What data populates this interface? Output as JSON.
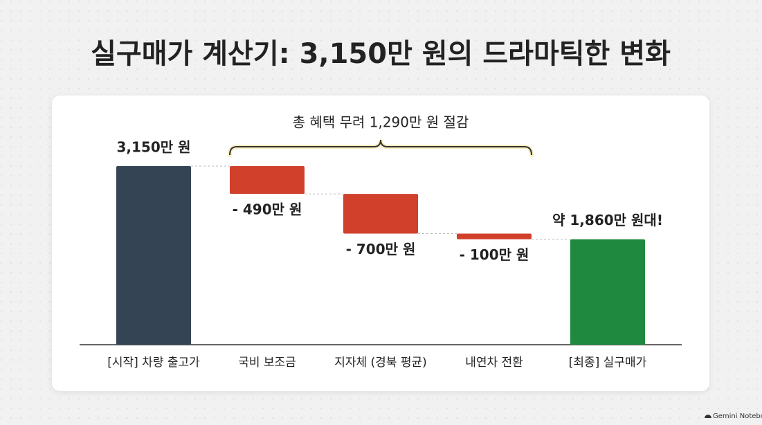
{
  "chart_data": {
    "type": "waterfall",
    "title": "실구매가 계산기: 3,150만 원의 드라마틱한 변화",
    "annotation": "총 혜택 무려 1,290만 원 절감",
    "categories": [
      "[시작] 차량 출고가",
      "국비 보조금",
      "지자체 (경북 평균)",
      "내연차 전환",
      "[최종] 실구매가"
    ],
    "values": [
      3150,
      -490,
      -700,
      -100,
      1860
    ],
    "value_labels": [
      "3,150만 원",
      "- 490만 원",
      "- 700만 원",
      "- 100만 원",
      "약 1,860만 원대!"
    ],
    "measure": [
      "absolute",
      "relative",
      "relative",
      "relative",
      "total"
    ],
    "colors": {
      "absolute": "#344454",
      "relative": "#d0402a",
      "total": "#1f8a3f"
    },
    "footer": "Gemini Notebook"
  }
}
